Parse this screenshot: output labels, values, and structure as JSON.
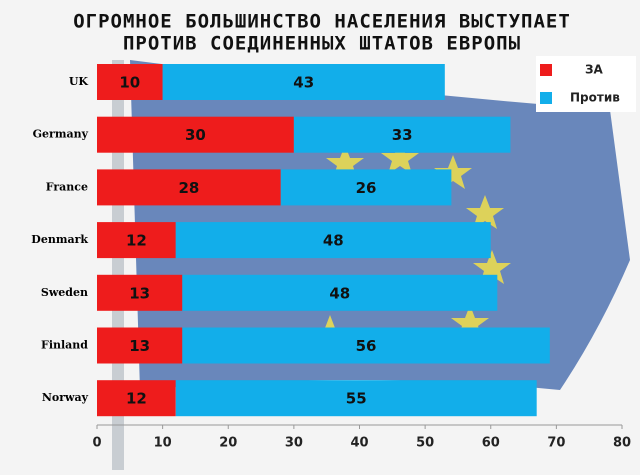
{
  "chart_data": {
    "type": "stacked-bar-horizontal",
    "title": [
      "ОГРОМНОЕ БОЛЬШИНСТВО НАСЕЛЕНИЯ  ВЫСТУПАЕТ",
      "ПРОТИВ СОЕДИНЕННЫХ ШТАТОВ ЕВРОПЫ"
    ],
    "categories": [
      "UK",
      "Germany",
      "France",
      "Denmark",
      "Sweden",
      "Finland",
      "Norway"
    ],
    "series": [
      {
        "name": "ЗА",
        "color": "#ee1c1c",
        "values": [
          10,
          30,
          28,
          12,
          13,
          13,
          12
        ]
      },
      {
        "name": "Против",
        "color": "#12aeea",
        "values": [
          43,
          33,
          26,
          48,
          48,
          56,
          55
        ]
      }
    ],
    "xlim": [
      0,
      80
    ],
    "xticks": [
      0,
      10,
      20,
      30,
      40,
      50,
      60,
      70,
      80
    ],
    "legend": "top-right"
  }
}
